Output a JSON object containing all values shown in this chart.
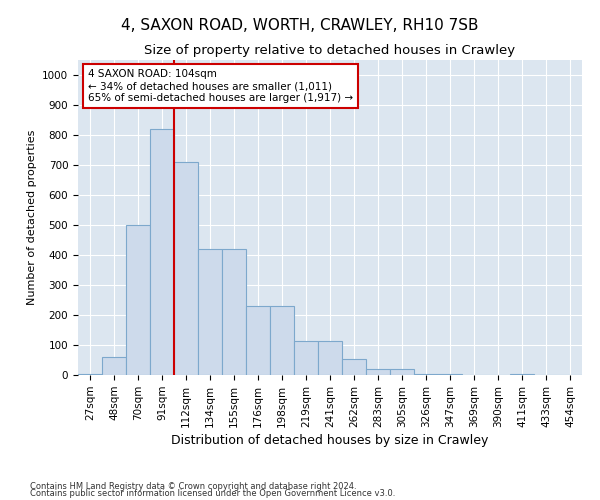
{
  "title": "4, SAXON ROAD, WORTH, CRAWLEY, RH10 7SB",
  "subtitle": "Size of property relative to detached houses in Crawley",
  "xlabel": "Distribution of detached houses by size in Crawley",
  "ylabel": "Number of detached properties",
  "footnote1": "Contains HM Land Registry data © Crown copyright and database right 2024.",
  "footnote2": "Contains public sector information licensed under the Open Government Licence v3.0.",
  "bin_labels": [
    "27sqm",
    "48sqm",
    "70sqm",
    "91sqm",
    "112sqm",
    "134sqm",
    "155sqm",
    "176sqm",
    "198sqm",
    "219sqm",
    "241sqm",
    "262sqm",
    "283sqm",
    "305sqm",
    "326sqm",
    "347sqm",
    "369sqm",
    "390sqm",
    "411sqm",
    "433sqm",
    "454sqm"
  ],
  "bar_values": [
    5,
    60,
    500,
    820,
    710,
    420,
    420,
    230,
    230,
    115,
    115,
    55,
    20,
    20,
    5,
    5,
    0,
    0,
    5,
    0,
    0
  ],
  "bar_color": "#cddaeb",
  "bar_edge_color": "#7da8cc",
  "vline_x": 3.5,
  "vline_color": "#cc0000",
  "annotation_text": "4 SAXON ROAD: 104sqm\n← 34% of detached houses are smaller (1,011)\n65% of semi-detached houses are larger (1,917) →",
  "annotation_box_color": "white",
  "annotation_box_edge": "#cc0000",
  "ylim": [
    0,
    1050
  ],
  "yticks": [
    0,
    100,
    200,
    300,
    400,
    500,
    600,
    700,
    800,
    900,
    1000
  ],
  "bg_color": "#dce6f0",
  "grid_color": "#b8c8d8",
  "title_fontsize": 11,
  "subtitle_fontsize": 9.5,
  "xlabel_fontsize": 9,
  "ylabel_fontsize": 8,
  "tick_fontsize": 7.5,
  "annot_fontsize": 7.5
}
